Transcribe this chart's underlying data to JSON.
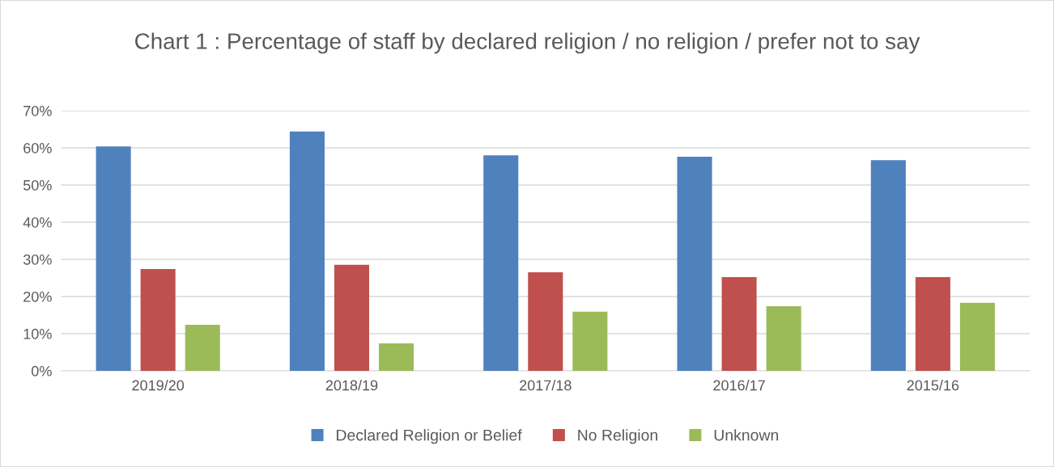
{
  "chart_data": {
    "type": "bar",
    "title": "Chart 1 : Percentage of staff by declared religion / no religion / prefer not to say",
    "categories": [
      "2019/20",
      "2018/19",
      "2017/18",
      "2016/17",
      "2015/16"
    ],
    "series": [
      {
        "name": "Declared Religion or Belief",
        "color": "#4f81bd",
        "values": [
          60.4,
          64.4,
          58.0,
          57.6,
          56.7
        ]
      },
      {
        "name": "No Religion",
        "color": "#c0504d",
        "values": [
          27.4,
          28.5,
          26.5,
          25.2,
          25.2
        ]
      },
      {
        "name": "Unknown",
        "color": "#9bbb59",
        "values": [
          12.4,
          7.4,
          15.9,
          17.4,
          18.3
        ]
      }
    ],
    "ylim": [
      0,
      70
    ],
    "yticks": [
      {
        "value": 0,
        "label": "0%"
      },
      {
        "value": 10,
        "label": "10%"
      },
      {
        "value": 20,
        "label": "20%"
      },
      {
        "value": 30,
        "label": "30%"
      },
      {
        "value": 40,
        "label": "40%"
      },
      {
        "value": 50,
        "label": "50%"
      },
      {
        "value": 60,
        "label": "60%"
      },
      {
        "value": 70,
        "label": "70%"
      }
    ],
    "grid": "y",
    "legend": "bottom"
  }
}
